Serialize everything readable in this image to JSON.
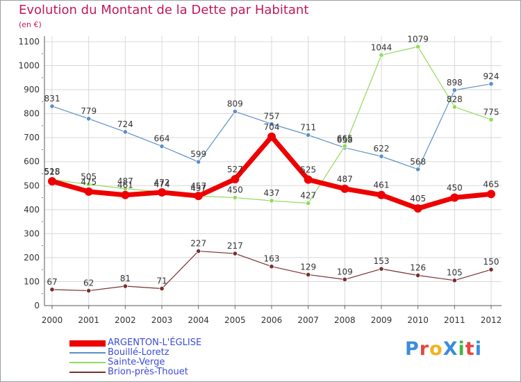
{
  "title": "Evolution du Montant de la Dette par Habitant",
  "subtitle": "(en €)",
  "logo": {
    "text": "ProXiti",
    "colors": [
      "#3a8dde",
      "#e8453c",
      "#f2b21b",
      "#3a8dde",
      "#45b649",
      "#e8453c",
      "#3a8dde"
    ]
  },
  "chart_data": {
    "type": "line",
    "title": "Evolution du Montant de la Dette par Habitant",
    "ylabel": "(en €)",
    "xlabel": "",
    "x": [
      "2000",
      "2001",
      "2002",
      "2003",
      "2004",
      "2005",
      "2006",
      "2007",
      "2008",
      "2009",
      "2010",
      "2011",
      "2012"
    ],
    "ylim": [
      0,
      1100
    ],
    "yticks": [
      "0",
      "100",
      "200",
      "300",
      "400",
      "500",
      "600",
      "700",
      "800",
      "900",
      "1000",
      "1100"
    ],
    "grid": true,
    "legend_position": "bottom-left",
    "series": [
      {
        "name": "ARGENTON-L'ÉGLISE",
        "color": "#ee0000",
        "values": [
          518,
          475,
          461,
          472,
          457,
          527,
          704,
          525,
          487,
          461,
          405,
          450,
          465
        ],
        "labels": [
          "518",
          "475",
          "461",
          "472",
          "457",
          "527",
          "704",
          "525",
          "487",
          "461",
          "405",
          "450",
          "465"
        ]
      },
      {
        "name": "Bouillé-Loretz",
        "color": "#5b8fc7",
        "values": [
          831,
          779,
          724,
          664,
          599,
          809,
          757,
          711,
          658,
          622,
          568,
          898,
          924
        ],
        "labels": [
          "831",
          "779",
          "724",
          "664",
          "599",
          "809",
          "757",
          "711",
          "658",
          "622",
          "568",
          "898",
          "924"
        ]
      },
      {
        "name": "Sainte-Verge",
        "color": "#8fdb5a",
        "values": [
          525,
          505,
          487,
          474,
          457,
          450,
          437,
          427,
          665,
          1044,
          1079,
          828,
          775
        ],
        "labels": [
          "525",
          "505",
          "487",
          "474",
          "457",
          "450",
          "437",
          "427",
          "665",
          "1044",
          "1079",
          "828",
          "775"
        ]
      },
      {
        "name": "Brion-près-Thouet",
        "color": "#7a2e2e",
        "values": [
          67,
          62,
          81,
          71,
          227,
          217,
          163,
          129,
          109,
          153,
          126,
          105,
          150
        ],
        "labels": [
          "67",
          "62",
          "81",
          "71",
          "227",
          "217",
          "163",
          "129",
          "109",
          "153",
          "126",
          "105",
          "150"
        ]
      }
    ]
  }
}
